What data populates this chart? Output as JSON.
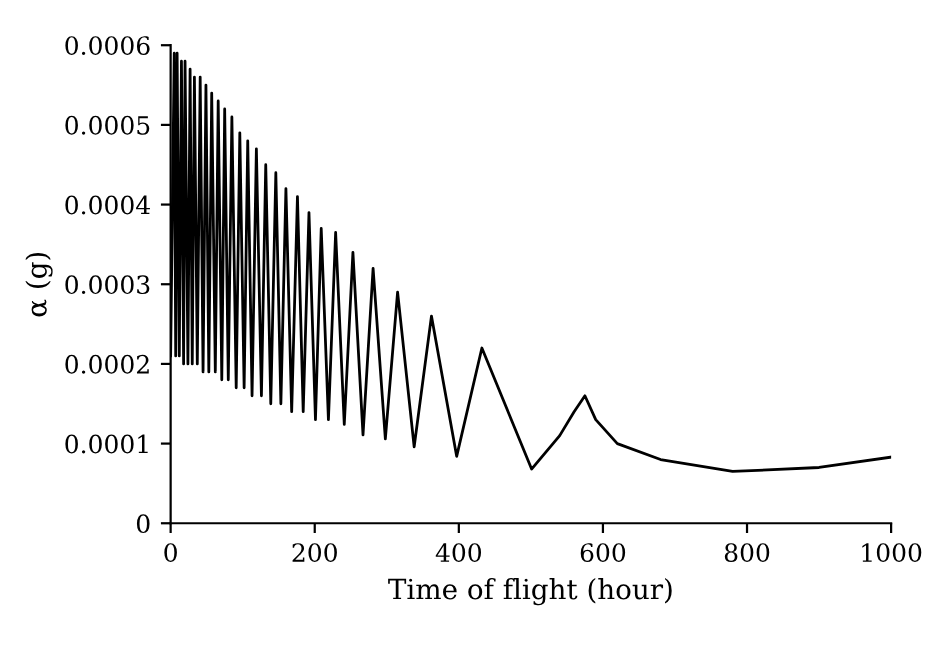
{
  "chart_data": {
    "type": "line",
    "xlabel": "Time of flight (hour)",
    "ylabel": "α (g)",
    "xlim": [
      0,
      1000
    ],
    "ylim": [
      0,
      0.0006
    ],
    "xticks": [
      0,
      200,
      400,
      600,
      800,
      1000
    ],
    "yticks": [
      0,
      0.0001,
      0.0002,
      0.0003,
      0.0004,
      0.0005,
      0.0006
    ],
    "grid": false,
    "legend": false,
    "marker": "none",
    "line_style": "solid",
    "series": [
      {
        "color": "#000000",
        "x": [
          0,
          5,
          7,
          9,
          12,
          15,
          18,
          20,
          24,
          27,
          30,
          33,
          37,
          41,
          45,
          49,
          53,
          57,
          62,
          66,
          71,
          75,
          80,
          85,
          91,
          96,
          102,
          107,
          113,
          119,
          126,
          132,
          139,
          146,
          153,
          160,
          168,
          176,
          184,
          192,
          201,
          209,
          219,
          229,
          241,
          253,
          267,
          281,
          298,
          315,
          338,
          362,
          397,
          432,
          501,
          540,
          560,
          575,
          590,
          620,
          680,
          780,
          900,
          1000
        ],
        "values": [
          0.00021,
          0.00059,
          0.00021,
          0.00059,
          0.00021,
          0.00058,
          0.0002,
          0.00058,
          0.0002,
          0.00057,
          0.0002,
          0.00056,
          0.0002,
          0.00056,
          0.00019,
          0.00055,
          0.00019,
          0.00054,
          0.00019,
          0.00053,
          0.00018,
          0.00052,
          0.00018,
          0.00051,
          0.00017,
          0.00049,
          0.00017,
          0.00048,
          0.00016,
          0.00047,
          0.00016,
          0.00045,
          0.00015,
          0.00044,
          0.00015,
          0.00042,
          0.00014,
          0.00041,
          0.00014,
          0.00039,
          0.00013,
          0.00037,
          0.00013,
          0.000365,
          0.000124,
          0.00034,
          0.000111,
          0.00032,
          0.000106,
          0.00029,
          9.6e-05,
          0.00026,
          8.4e-05,
          0.00022,
          6.8e-05,
          0.00011,
          0.00014,
          0.00016,
          0.00013,
          0.0001,
          8e-05,
          6.5e-05,
          7e-05,
          8.3e-05
        ]
      }
    ]
  }
}
